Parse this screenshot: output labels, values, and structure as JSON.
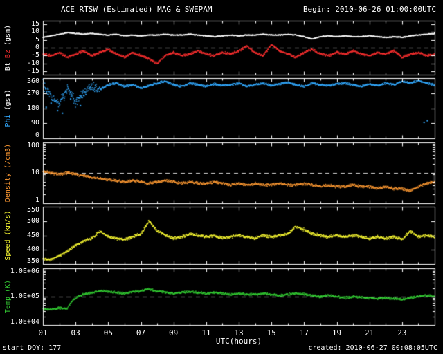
{
  "header": {
    "title": "ACE RTSW (Estimated) MAG & SWEPAM",
    "begin": "Begin: 2010-06-26 01:00:00UTC"
  },
  "footer": {
    "start_doy": "start DOY: 177",
    "created": "created: 2010-06-27 00:08:05UTC"
  },
  "colors": {
    "background": "#000000",
    "frame": "#ffffff",
    "text": "#ffffff",
    "refline": "#d8d8d8",
    "bt": "#ffffff",
    "bz": "#ff3030",
    "phi": "#33aaff",
    "density": "#ff9a33",
    "speed": "#ffff33",
    "temp": "#33cc33"
  },
  "x_axis": {
    "label": "UTC(hours)",
    "range": [
      1,
      25
    ],
    "ticks": [
      {
        "v": 1,
        "label": "01"
      },
      {
        "v": 3,
        "label": "03"
      },
      {
        "v": 5,
        "label": "05"
      },
      {
        "v": 7,
        "label": "07"
      },
      {
        "v": 9,
        "label": "09"
      },
      {
        "v": 11,
        "label": "11"
      },
      {
        "v": 13,
        "label": "13"
      },
      {
        "v": 15,
        "label": "15"
      },
      {
        "v": 17,
        "label": "17"
      },
      {
        "v": 19,
        "label": "19"
      },
      {
        "v": 21,
        "label": "21"
      },
      {
        "v": 23,
        "label": "23"
      }
    ]
  },
  "chart_data": [
    {
      "id": "mag",
      "type": "scatter",
      "scale": "linear",
      "ylim": [
        -17,
        17
      ],
      "x_start": 1,
      "x_step": 0.5,
      "refline": 0,
      "yticks": [
        {
          "v": 15,
          "label": "15"
        },
        {
          "v": 10,
          "label": "10"
        },
        {
          "v": 5,
          "label": "5"
        },
        {
          "v": 0,
          "label": "0"
        },
        {
          "v": -5,
          "label": "-5"
        },
        {
          "v": -10,
          "label": "-10"
        },
        {
          "v": -15,
          "label": "-15"
        }
      ],
      "ylabel_parts": [
        {
          "text": "Bt",
          "color": "#ffffff"
        },
        {
          "text": "Bz",
          "color": "#ff3030"
        },
        {
          "text": "(gsm)",
          "color": "#ffffff"
        }
      ],
      "series": [
        {
          "name": "Bt",
          "color": "#ffffff",
          "jitter": 0.35,
          "values": [
            6.5,
            7.5,
            8.5,
            9.5,
            9,
            8.5,
            9,
            8.5,
            8,
            8.5,
            7.5,
            8,
            7.5,
            8,
            8,
            8.5,
            8,
            8,
            8.5,
            8,
            7.5,
            7,
            7.5,
            8,
            7.5,
            8,
            8,
            8.5,
            8,
            8,
            8.5,
            8,
            7,
            5.5,
            7,
            7.5,
            7,
            7.5,
            7,
            7,
            7.5,
            7,
            6.5,
            7,
            6.5,
            7.5,
            8,
            8.5,
            9
          ]
        },
        {
          "name": "Bz",
          "color": "#ff3030",
          "jitter": 0.9,
          "values": [
            -4,
            -5,
            -3,
            -6,
            -4,
            -2,
            -5,
            -3,
            -1,
            -4,
            -6,
            -3,
            -5,
            -7,
            -10,
            -5,
            -3,
            -5,
            -4,
            -2,
            -4,
            -5,
            -3,
            -4,
            -2,
            1,
            -3,
            -5,
            2,
            -2,
            -4,
            -6,
            -3,
            -1,
            -4,
            -5,
            -3,
            -4,
            -2,
            -4,
            -5,
            -3,
            -4,
            -2,
            -6,
            -4,
            -3,
            -5,
            -4
          ]
        }
      ]
    },
    {
      "id": "phi",
      "type": "scatter",
      "scale": "linear",
      "ylim": [
        0,
        360
      ],
      "x_start": 1,
      "x_step": 0.5,
      "refline": null,
      "yticks": [
        {
          "v": 360,
          "label": "360"
        },
        {
          "v": 270,
          "label": "270"
        },
        {
          "v": 180,
          "label": "180"
        },
        {
          "v": 90,
          "label": "90"
        },
        {
          "v": 0,
          "label": "0"
        }
      ],
      "ylabel_parts": [
        {
          "text": "Phi",
          "color": "#33aaff"
        },
        {
          "text": "(gsm)",
          "color": "#ffffff"
        }
      ],
      "series": [
        {
          "name": "Phi",
          "color": "#33aaff",
          "jitter": 8,
          "jitter_ranges": [
            {
              "range": [
                1,
                4.5
              ],
              "jitter": 35
            }
          ],
          "outliers": [
            [
              1.2,
              185
            ],
            [
              1.5,
              210
            ],
            [
              1.9,
              165
            ],
            [
              2.2,
              150
            ],
            [
              2.7,
              235
            ],
            [
              3.3,
              195
            ],
            [
              24.35,
              95
            ],
            [
              24.55,
              105
            ]
          ],
          "values": [
            320,
            250,
            200,
            300,
            220,
            280,
            310,
            290,
            320,
            330,
            310,
            320,
            300,
            315,
            330,
            340,
            320,
            310,
            330,
            320,
            310,
            325,
            315,
            320,
            330,
            310,
            320,
            330,
            315,
            325,
            335,
            320,
            310,
            330,
            320,
            315,
            325,
            330,
            320,
            310,
            325,
            315,
            330,
            320,
            340,
            330,
            345,
            330,
            320
          ]
        }
      ]
    },
    {
      "id": "density",
      "type": "scatter",
      "scale": "log",
      "ylim": [
        1,
        100
      ],
      "x_start": 1,
      "x_step": 0.5,
      "refline": 10,
      "yticks": [
        {
          "v": 100,
          "label": "100"
        },
        {
          "v": 10,
          "label": "10"
        },
        {
          "v": 1,
          "label": "1"
        }
      ],
      "ylabel_parts": [
        {
          "text": "Density (/cm3)",
          "color": "#ff9a33"
        }
      ],
      "series": [
        {
          "name": "Density",
          "color": "#ff9a33",
          "jitter": 0.055,
          "values": [
            11,
            10,
            9,
            10,
            9,
            8,
            7,
            6.5,
            6,
            5.5,
            5,
            5.5,
            5,
            4.5,
            5,
            5.5,
            5,
            4.5,
            5,
            4.5,
            4.5,
            5,
            4.5,
            4,
            4.5,
            4,
            4.5,
            4,
            4,
            4.5,
            4,
            4,
            4.5,
            4,
            3.5,
            4,
            3.5,
            3.5,
            4,
            3.5,
            3.5,
            3,
            3.5,
            3,
            3,
            2.5,
            3.5,
            4.5,
            5
          ]
        }
      ]
    },
    {
      "id": "speed",
      "type": "scatter",
      "scale": "linear",
      "ylim": [
        350,
        550
      ],
      "x_start": 1,
      "x_step": 0.5,
      "refline": null,
      "yticks": [
        {
          "v": 550,
          "label": "550"
        },
        {
          "v": 500,
          "label": "500"
        },
        {
          "v": 450,
          "label": "450"
        },
        {
          "v": 400,
          "label": "400"
        },
        {
          "v": 350,
          "label": "350"
        }
      ],
      "ylabel_parts": [
        {
          "text": "Speed (km/s)",
          "color": "#ffff33"
        }
      ],
      "series": [
        {
          "name": "Speed",
          "color": "#ffff33",
          "jitter": 6,
          "values": [
            370,
            365,
            380,
            395,
            415,
            430,
            440,
            465,
            445,
            440,
            435,
            445,
            455,
            500,
            465,
            450,
            440,
            445,
            455,
            450,
            445,
            450,
            440,
            445,
            450,
            445,
            440,
            450,
            445,
            450,
            455,
            480,
            470,
            455,
            450,
            445,
            450,
            445,
            450,
            445,
            440,
            445,
            440,
            445,
            435,
            465,
            445,
            450,
            445
          ]
        }
      ]
    },
    {
      "id": "temp",
      "type": "scatter",
      "scale": "log",
      "ylim": [
        10000,
        1000000
      ],
      "x_start": 1,
      "x_step": 0.5,
      "refline": 100000,
      "yticks": [
        {
          "v": 1000000,
          "label": "1.0E+06"
        },
        {
          "v": 100000,
          "label": "1.0E+05"
        },
        {
          "v": 10000,
          "label": "1.0E+04"
        }
      ],
      "ylabel_parts": [
        {
          "text": "Temp (K)",
          "color": "#33cc33"
        }
      ],
      "series": [
        {
          "name": "Temp",
          "color": "#33cc33",
          "jitter": 0.05,
          "values": [
            35000,
            35000,
            40000,
            38000,
            90000,
            120000,
            140000,
            160000,
            150000,
            140000,
            130000,
            150000,
            160000,
            180000,
            150000,
            140000,
            130000,
            140000,
            150000,
            140000,
            130000,
            140000,
            130000,
            120000,
            130000,
            120000,
            120000,
            130000,
            120000,
            110000,
            120000,
            130000,
            120000,
            110000,
            100000,
            110000,
            100000,
            90000,
            100000,
            95000,
            90000,
            85000,
            90000,
            85000,
            80000,
            90000,
            100000,
            110000,
            100000
          ]
        }
      ]
    }
  ]
}
